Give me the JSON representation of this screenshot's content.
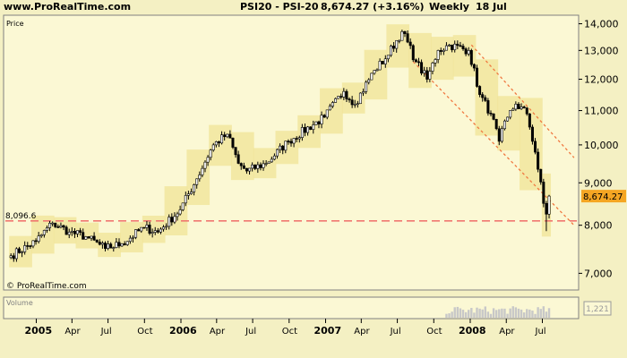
{
  "header": {
    "site": "www.ProRealTime.com",
    "instrument": "PSI20 - PSI-20",
    "last_value": "8,674.27 (+3.16%)",
    "period": "Weekly",
    "date": "18 Jul"
  },
  "panels": {
    "price_label": "Price",
    "volume_label": "Volume",
    "volume_badge": "1,221",
    "copyright": "© ProRealTime.com"
  },
  "colors": {
    "background": "#f4f0c3",
    "plot": "#fbf8d4",
    "envelope": "#f1e59a",
    "candle": "#000000",
    "support_line": "#f07870",
    "trend_lines": "#f07840",
    "price_badge": "#f5a623"
  },
  "chart_data": {
    "type": "candlestick",
    "x_ticks": [
      "2005",
      "Apr",
      "Jul",
      "Oct",
      "2006",
      "Apr",
      "Jul",
      "Oct",
      "2007",
      "Apr",
      "Jul",
      "Oct",
      "2008",
      "Apr",
      "Jul"
    ],
    "x_ticks_bold": [
      "2005",
      "2006",
      "2007",
      "2008"
    ],
    "y_ticks": [
      "7,000",
      "8,000",
      "9,000",
      "10,000",
      "11,000",
      "12,000",
      "13,000",
      "14,000"
    ],
    "y_tick_values": [
      7000,
      8000,
      9000,
      10000,
      11000,
      12000,
      13000,
      14000
    ],
    "ylim": [
      6700,
      14300
    ],
    "log_scale": true,
    "grid": false,
    "last_price": 8674.27,
    "last_price_label": "8,674.27",
    "support_level": 8096.6,
    "support_label": "8,096.6",
    "anchors": [
      [
        "2004-10-29",
        7350
      ],
      [
        "2004-12-31",
        7650
      ],
      [
        "2005-02-11",
        8050
      ],
      [
        "2005-03-25",
        7850
      ],
      [
        "2005-05-06",
        7750
      ],
      [
        "2005-06-24",
        7500
      ],
      [
        "2005-08-05",
        7600
      ],
      [
        "2005-09-30",
        7950
      ],
      [
        "2005-11-04",
        7850
      ],
      [
        "2005-12-30",
        8350
      ],
      [
        "2006-02-10",
        9100
      ],
      [
        "2006-03-24",
        10000
      ],
      [
        "2006-04-28",
        10300
      ],
      [
        "2006-05-26",
        9500
      ],
      [
        "2006-06-16",
        9300
      ],
      [
        "2006-08-04",
        9500
      ],
      [
        "2006-09-29",
        10100
      ],
      [
        "2006-12-29",
        10800
      ],
      [
        "2007-02-16",
        11600
      ],
      [
        "2007-03-16",
        11200
      ],
      [
        "2007-05-04",
        12300
      ],
      [
        "2007-06-01",
        12700
      ],
      [
        "2007-07-13",
        13700
      ],
      [
        "2007-08-17",
        12600
      ],
      [
        "2007-09-14",
        12000
      ],
      [
        "2007-10-12",
        13000
      ],
      [
        "2007-11-09",
        13200
      ],
      [
        "2007-12-28",
        13000
      ],
      [
        "2008-01-25",
        11500
      ],
      [
        "2008-02-22",
        10900
      ],
      [
        "2008-03-14",
        10100
      ],
      [
        "2008-04-04",
        10800
      ],
      [
        "2008-04-25",
        11200
      ],
      [
        "2008-05-23",
        10900
      ],
      [
        "2008-06-13",
        9800
      ],
      [
        "2008-07-04",
        8500
      ],
      [
        "2008-07-11",
        8250
      ],
      [
        "2008-07-18",
        8674
      ]
    ],
    "trend_lines": [
      {
        "name": "upper",
        "from": [
          "2008-01-04",
          13200
        ],
        "to": [
          "2008-09-19",
          9650
        ]
      },
      {
        "name": "lower",
        "from": [
          "2007-08-10",
          12600
        ],
        "to": [
          "2008-09-19",
          8000
        ]
      }
    ],
    "volume_start": "2007-11-02"
  }
}
